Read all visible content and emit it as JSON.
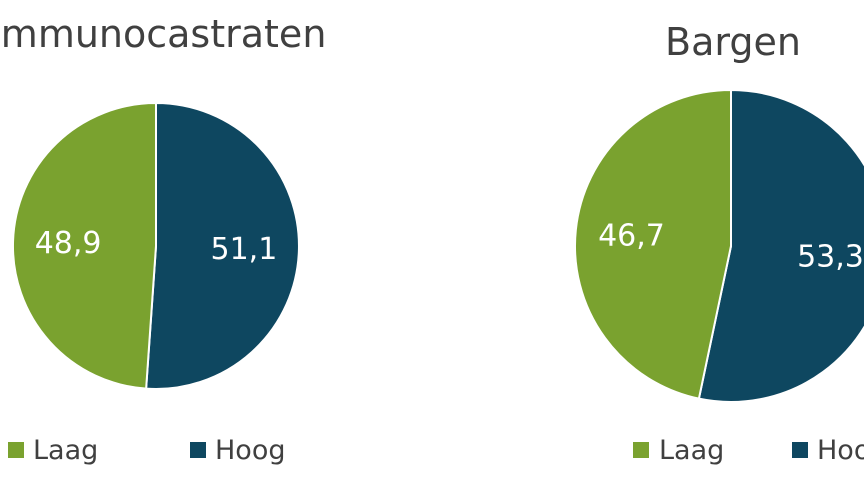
{
  "chart_data": [
    {
      "type": "pie",
      "title": "Immunocastraten",
      "categories": [
        "Laag",
        "Hoog"
      ],
      "values": [
        48.9,
        51.1
      ],
      "value_labels": [
        "48,9",
        "51,1"
      ],
      "colors": [
        "#7aa22f",
        "#0e4760"
      ],
      "legend": "bottom",
      "start_angle_deg": 0,
      "direction": "clockwise",
      "first_slice": "Hoog"
    },
    {
      "type": "pie",
      "title": "Bargen",
      "categories": [
        "Laag",
        "Hoog"
      ],
      "values": [
        46.7,
        53.3
      ],
      "value_labels": [
        "46,7",
        "53,3"
      ],
      "colors": [
        "#7aa22f",
        "#0e4760"
      ],
      "legend": "bottom",
      "start_angle_deg": 0,
      "direction": "clockwise",
      "first_slice": "Hoog"
    }
  ]
}
